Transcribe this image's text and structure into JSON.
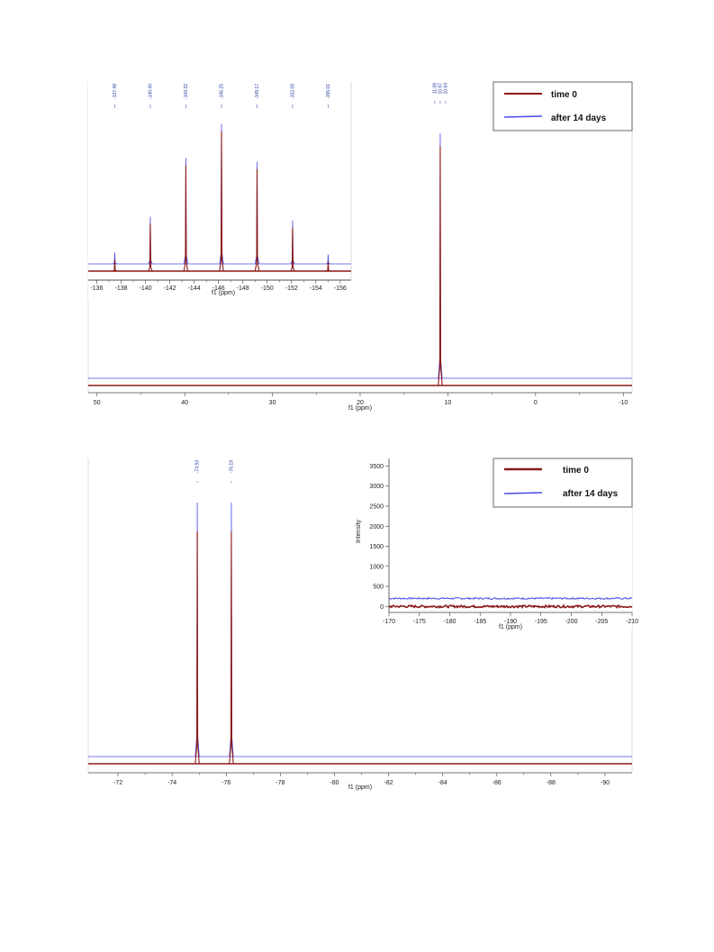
{
  "colors": {
    "time0": "#8b1a1a",
    "after14": "#4a4ae8",
    "peaklabel": "#23379a",
    "frame": "#d8d8d8"
  },
  "chart_data": [
    {
      "id": "top-main",
      "type": "line",
      "xlabel": "f1 (ppm)",
      "ylabel": "",
      "xlim": [
        51,
        -11
      ],
      "reversed_x": true,
      "xticks": [
        "50",
        "40",
        "30",
        "20",
        "10",
        "0",
        "-10"
      ],
      "xtick_values": [
        50,
        40,
        30,
        20,
        10,
        0,
        -10
      ],
      "series": [
        {
          "name": "time 0",
          "peaks": [
            {
              "x": 10.87,
              "intensity": 0.95
            }
          ]
        },
        {
          "name": "after 14 days",
          "peaks": [
            {
              "x": 10.87,
              "intensity": 0.97
            }
          ]
        }
      ],
      "peak_labels": [
        "11.08",
        "10.87",
        "10.64"
      ],
      "legend": {
        "placement": "top-right",
        "entries": [
          "time 0",
          "after 14 days"
        ]
      }
    },
    {
      "id": "top-inset",
      "type": "line",
      "xlabel": "f1 (ppm)",
      "ylabel": "",
      "xlim": [
        -135.3,
        -156.9
      ],
      "reversed_x": true,
      "xticks": [
        "-136",
        "-138",
        "-140",
        "-142",
        "-144",
        "-146",
        "-148",
        "-150",
        "-152",
        "-154",
        "-156"
      ],
      "xtick_values": [
        -136,
        -138,
        -140,
        -142,
        -144,
        -146,
        -148,
        -150,
        -152,
        -154,
        -156
      ],
      "series": [
        {
          "name": "time 0",
          "peaks": [
            {
              "x": -137.48,
              "intensity": 0.06
            },
            {
              "x": -140.4,
              "intensity": 0.25
            },
            {
              "x": -143.32,
              "intensity": 0.56
            },
            {
              "x": -146.25,
              "intensity": 0.74
            },
            {
              "x": -149.17,
              "intensity": 0.54
            },
            {
              "x": -152.09,
              "intensity": 0.23
            },
            {
              "x": -155.01,
              "intensity": 0.05
            }
          ]
        },
        {
          "name": "after 14 days",
          "peaks": [
            {
              "x": -137.48,
              "intensity": 0.06
            },
            {
              "x": -140.4,
              "intensity": 0.25
            },
            {
              "x": -143.32,
              "intensity": 0.56
            },
            {
              "x": -146.25,
              "intensity": 0.74
            },
            {
              "x": -149.17,
              "intensity": 0.54
            },
            {
              "x": -152.09,
              "intensity": 0.23
            },
            {
              "x": -155.01,
              "intensity": 0.05
            }
          ]
        }
      ],
      "peak_labels": [
        "-137.48",
        "-140.40",
        "-143.32",
        "-146.25",
        "-149.17",
        "-152.09",
        "-155.01"
      ]
    },
    {
      "id": "bottom-main",
      "type": "line",
      "xlabel": "f1 (ppm)",
      "ylabel": "",
      "xlim": [
        -70.9,
        -91.0
      ],
      "reversed_x": true,
      "xticks": [
        "-72",
        "-74",
        "-76",
        "-78",
        "-80",
        "-82",
        "-84",
        "-86",
        "-88",
        "-90"
      ],
      "xtick_values": [
        -72,
        -74,
        -76,
        -78,
        -80,
        -82,
        -84,
        -86,
        -88,
        -90
      ],
      "series": [
        {
          "name": "time 0",
          "peaks": [
            {
              "x": -74.93,
              "intensity": 0.86
            },
            {
              "x": -76.19,
              "intensity": 0.86
            }
          ]
        },
        {
          "name": "after 14 days",
          "peaks": [
            {
              "x": -74.93,
              "intensity": 0.94
            },
            {
              "x": -76.19,
              "intensity": 0.94
            }
          ]
        }
      ],
      "peak_labels": [
        "-74.93",
        "-76.19"
      ],
      "legend": {
        "placement": "top-right",
        "entries": [
          "time 0",
          "after 14 days"
        ]
      }
    },
    {
      "id": "bottom-inset",
      "type": "line",
      "xlabel": "f1 (ppm)",
      "ylabel": "Intensity",
      "xlim": [
        -170,
        -210
      ],
      "ylim": [
        -150,
        3600
      ],
      "reversed_x": true,
      "xticks": [
        "-170",
        "-175",
        "-180",
        "-185",
        "-190",
        "-195",
        "-200",
        "-205",
        "-210"
      ],
      "xtick_values": [
        -170,
        -175,
        -180,
        -185,
        -190,
        -195,
        -200,
        -205,
        -210
      ],
      "yticks": [
        "0",
        "500",
        "1000",
        "1500",
        "2000",
        "2500",
        "3000",
        "3500"
      ],
      "ytick_values": [
        0,
        500,
        1000,
        1500,
        2000,
        2500,
        3000,
        3500
      ],
      "series": [
        {
          "name": "time 0",
          "baseline": 0
        },
        {
          "name": "after 14 days",
          "baseline": 200
        }
      ]
    }
  ]
}
